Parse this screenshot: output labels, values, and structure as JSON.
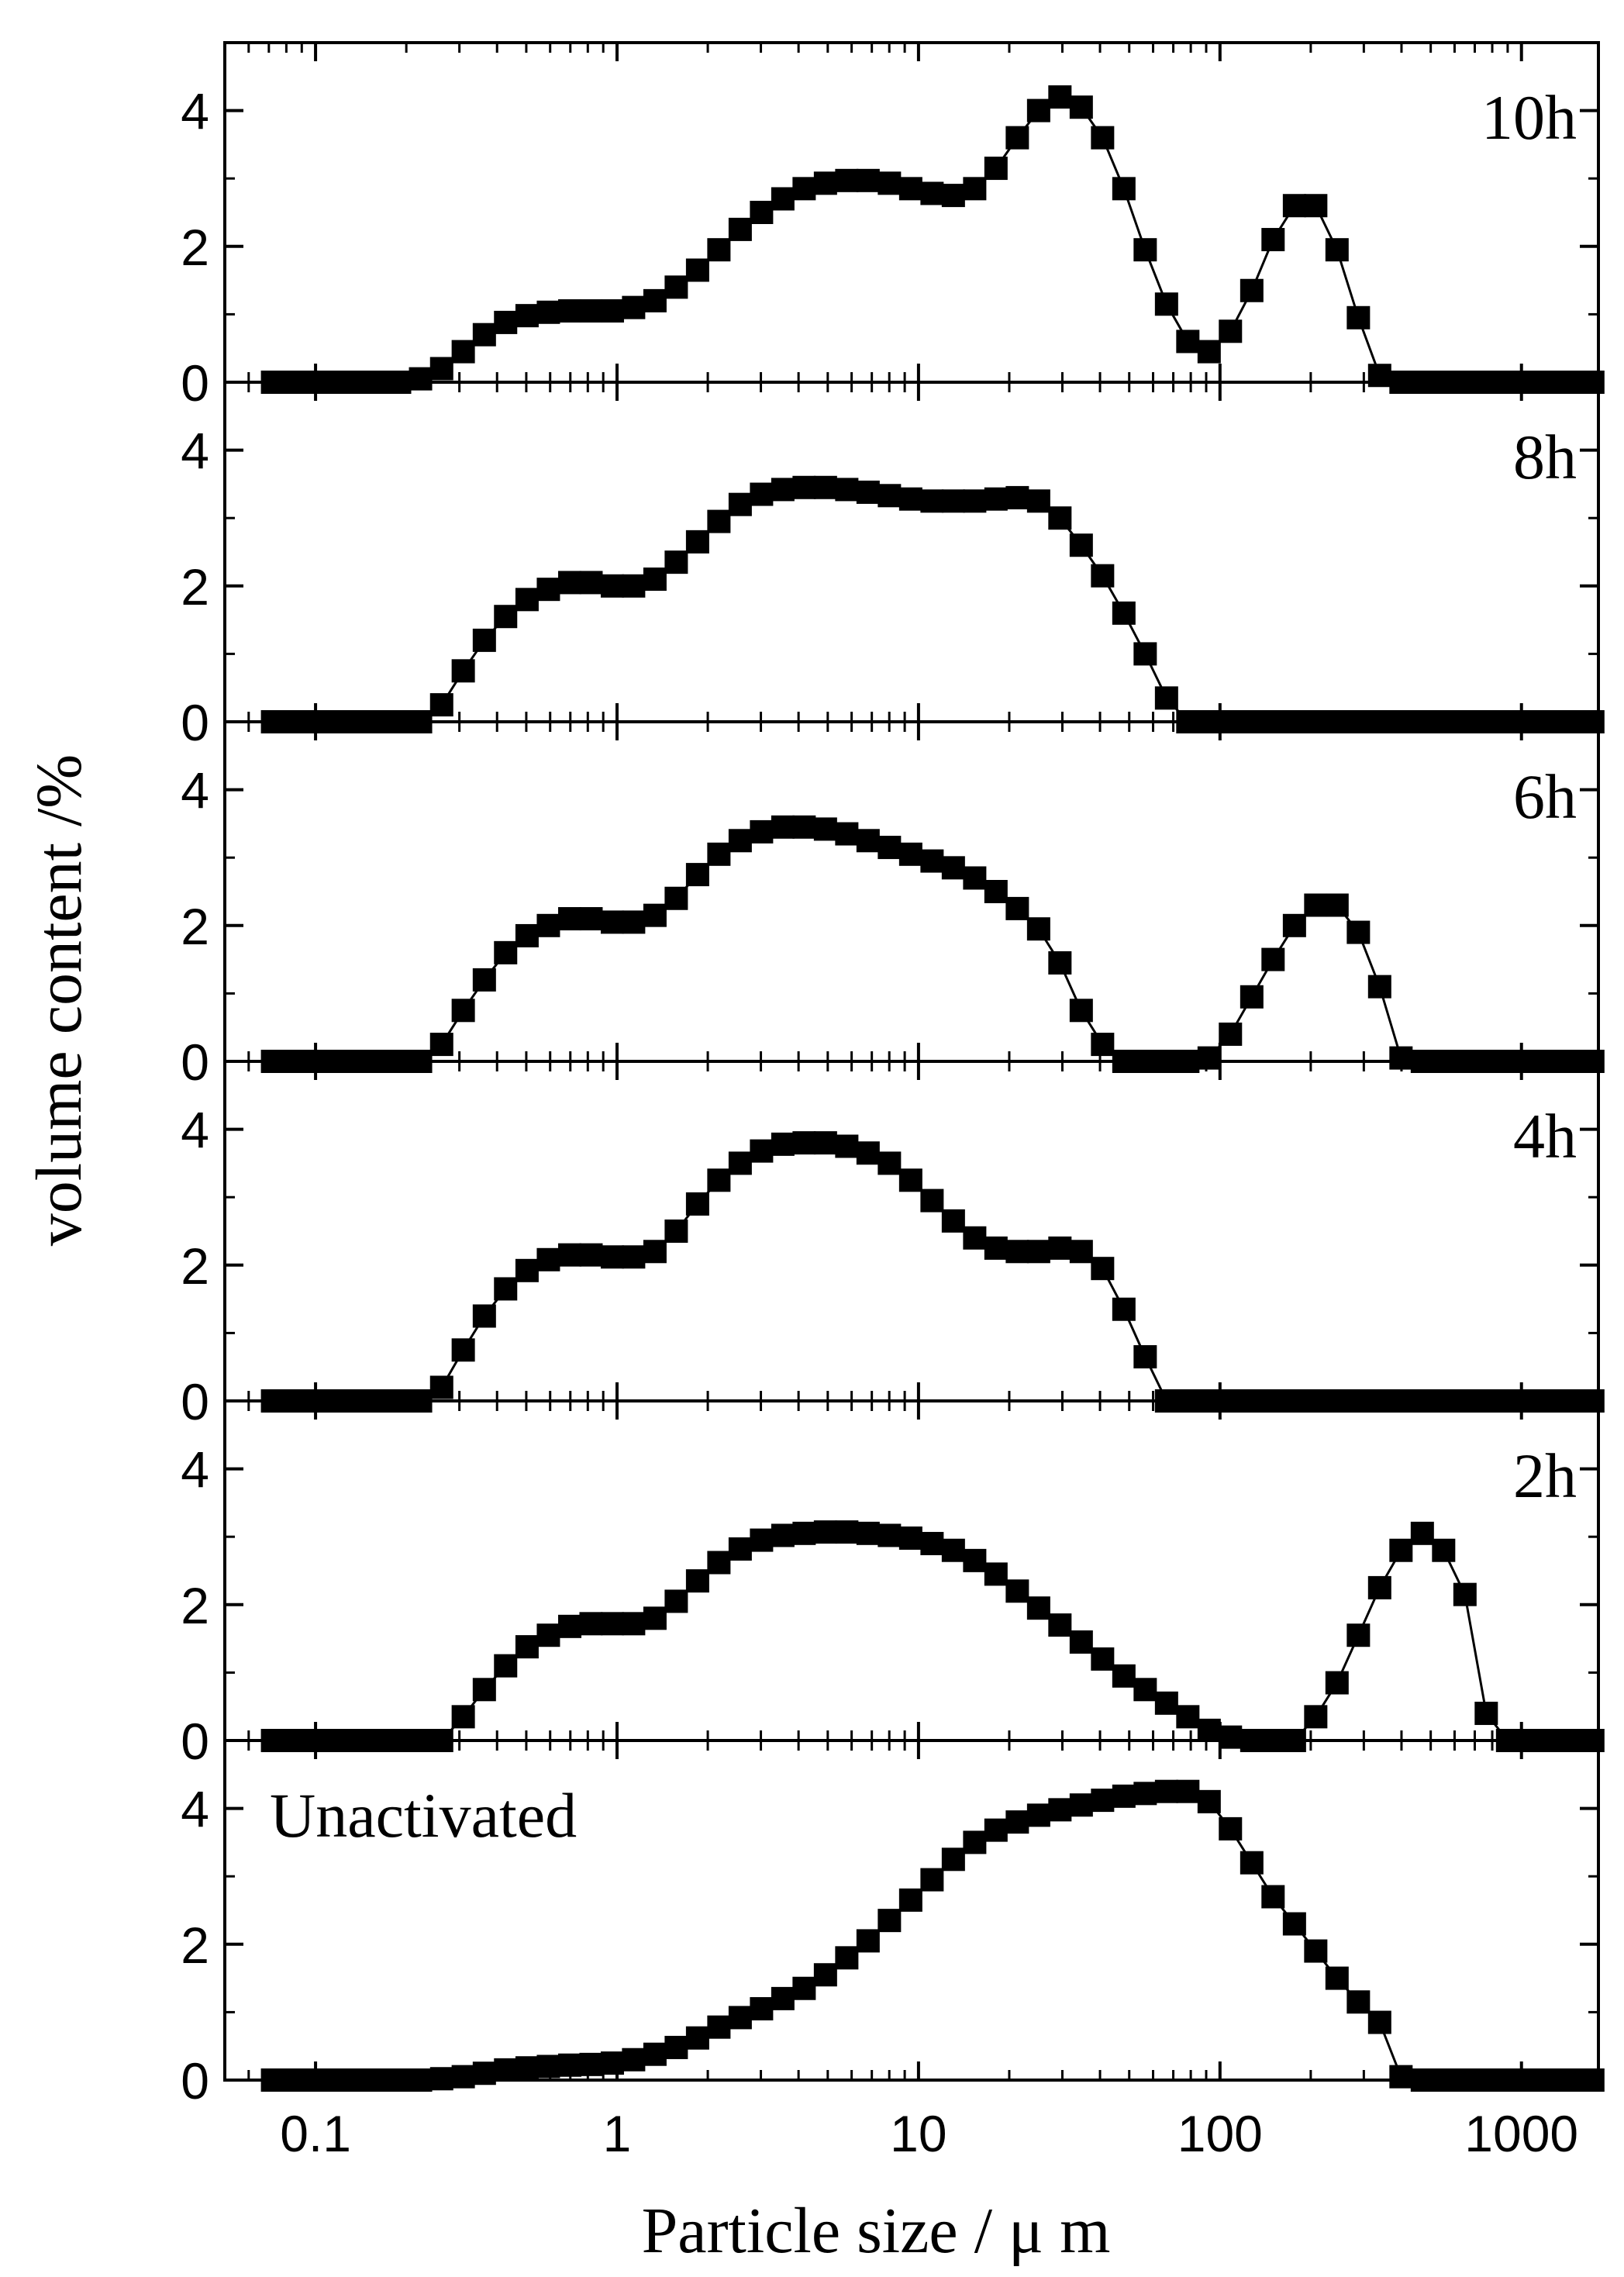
{
  "chart_data": {
    "type": "scatter",
    "title": "",
    "xlabel": "Particle size / μ m",
    "ylabel": "volume content /%",
    "xscale": "log",
    "xlim": [
      0.05,
      1800
    ],
    "x_ticks": [
      0.1,
      1,
      10,
      100,
      1000
    ],
    "x_tick_labels": [
      "0.1",
      "1",
      "10",
      "100",
      "1000"
    ],
    "y_ticks": [
      0,
      2,
      4
    ],
    "y_tick_labels": [
      "0",
      "2",
      "4"
    ],
    "legend_position": "none",
    "marker": "filled-square",
    "color": "#000000",
    "panels": [
      {
        "name": "10h",
        "label": "10h",
        "label_position": "top-right",
        "ylim": [
          0,
          5
        ],
        "x": [
          0.072,
          0.084,
          0.099,
          0.117,
          0.137,
          0.161,
          0.19,
          0.223,
          0.262,
          0.309,
          0.363,
          0.427,
          0.503,
          0.592,
          0.697,
          0.82,
          0.965,
          1.135,
          1.336,
          1.572,
          1.85,
          2.177,
          2.562,
          3.015,
          3.548,
          4.175,
          4.913,
          5.782,
          6.804,
          8.007,
          9.423,
          11.09,
          13.05,
          15.36,
          18.07,
          21.27,
          25.03,
          29.45,
          34.66,
          40.79,
          48.0,
          56.49,
          66.48,
          78.23,
          92.06,
          108.3,
          127.5,
          150.0,
          176.6,
          207.8,
          244.5,
          287.8,
          338.6,
          398.5,
          469.0,
          551.9,
          649.5,
          764.3,
          899.5,
          1058.5,
          1245.6,
          1466.0,
          1725.0
        ],
        "y": [
          0.0,
          0.0,
          0.0,
          0.0,
          0.0,
          0.0,
          0.0,
          0.05,
          0.2,
          0.45,
          0.7,
          0.88,
          0.98,
          1.03,
          1.05,
          1.05,
          1.05,
          1.1,
          1.2,
          1.4,
          1.65,
          1.95,
          2.25,
          2.5,
          2.7,
          2.85,
          2.93,
          2.97,
          2.97,
          2.93,
          2.85,
          2.78,
          2.75,
          2.85,
          3.15,
          3.6,
          4.0,
          4.2,
          4.05,
          3.6,
          2.85,
          1.95,
          1.15,
          0.6,
          0.45,
          0.75,
          1.35,
          2.1,
          2.6,
          2.6,
          1.95,
          0.95,
          0.1,
          0.0,
          0.0,
          0.0,
          0.0,
          0.0,
          0.0,
          0.0,
          0.0,
          0.0,
          0.0
        ]
      },
      {
        "name": "8h",
        "label": "8h",
        "label_position": "top-right",
        "ylim": [
          0,
          5
        ],
        "x": [
          0.072,
          0.084,
          0.099,
          0.117,
          0.137,
          0.161,
          0.19,
          0.223,
          0.262,
          0.309,
          0.363,
          0.427,
          0.503,
          0.592,
          0.697,
          0.82,
          0.965,
          1.135,
          1.336,
          1.572,
          1.85,
          2.177,
          2.562,
          3.015,
          3.548,
          4.175,
          4.913,
          5.782,
          6.804,
          8.007,
          9.423,
          11.09,
          13.05,
          15.36,
          18.07,
          21.27,
          25.03,
          29.45,
          34.66,
          40.79,
          48.0,
          56.49,
          66.48,
          78.23,
          92.06,
          108.3,
          127.5,
          150.0,
          176.6,
          207.8,
          244.5,
          287.8,
          338.6,
          398.5,
          469.0,
          551.9,
          649.5,
          764.3,
          899.5,
          1058.5,
          1245.6,
          1466.0,
          1725.0
        ],
        "y": [
          0.0,
          0.0,
          0.0,
          0.0,
          0.0,
          0.0,
          0.0,
          0.0,
          0.25,
          0.75,
          1.2,
          1.55,
          1.8,
          1.95,
          2.05,
          2.05,
          2.0,
          2.0,
          2.1,
          2.35,
          2.65,
          2.95,
          3.2,
          3.35,
          3.42,
          3.45,
          3.45,
          3.42,
          3.38,
          3.33,
          3.28,
          3.25,
          3.25,
          3.25,
          3.28,
          3.3,
          3.25,
          3.0,
          2.6,
          2.15,
          1.6,
          1.0,
          0.35,
          0.0,
          0.0,
          0.0,
          0.0,
          0.0,
          0.0,
          0.0,
          0.0,
          0.0,
          0.0,
          0.0,
          0.0,
          0.0,
          0.0,
          0.0,
          0.0,
          0.0,
          0.0,
          0.0,
          0.0
        ]
      },
      {
        "name": "6h",
        "label": "6h",
        "label_position": "top-right",
        "ylim": [
          0,
          5
        ],
        "x": [
          0.072,
          0.084,
          0.099,
          0.117,
          0.137,
          0.161,
          0.19,
          0.223,
          0.262,
          0.309,
          0.363,
          0.427,
          0.503,
          0.592,
          0.697,
          0.82,
          0.965,
          1.135,
          1.336,
          1.572,
          1.85,
          2.177,
          2.562,
          3.015,
          3.548,
          4.175,
          4.913,
          5.782,
          6.804,
          8.007,
          9.423,
          11.09,
          13.05,
          15.36,
          18.07,
          21.27,
          25.03,
          29.45,
          34.66,
          40.79,
          48.0,
          56.49,
          66.48,
          78.23,
          92.06,
          108.3,
          127.5,
          150.0,
          176.6,
          207.8,
          244.5,
          287.8,
          338.6,
          398.5,
          469.0,
          551.9,
          649.5,
          764.3,
          899.5,
          1058.5,
          1245.6,
          1466.0,
          1725.0
        ],
        "y": [
          0.0,
          0.0,
          0.0,
          0.0,
          0.0,
          0.0,
          0.0,
          0.0,
          0.25,
          0.75,
          1.2,
          1.6,
          1.85,
          2.0,
          2.1,
          2.1,
          2.05,
          2.05,
          2.15,
          2.4,
          2.75,
          3.05,
          3.25,
          3.38,
          3.45,
          3.45,
          3.42,
          3.35,
          3.25,
          3.15,
          3.05,
          2.95,
          2.85,
          2.7,
          2.5,
          2.25,
          1.95,
          1.45,
          0.75,
          0.25,
          0.0,
          0.0,
          0.0,
          0.0,
          0.05,
          0.4,
          0.95,
          1.5,
          2.0,
          2.3,
          2.3,
          1.9,
          1.1,
          0.05,
          0.0,
          0.0,
          0.0,
          0.0,
          0.0,
          0.0,
          0.0,
          0.0,
          0.0
        ]
      },
      {
        "name": "4h",
        "label": "4h",
        "label_position": "top-right",
        "ylim": [
          0,
          5
        ],
        "x": [
          0.072,
          0.084,
          0.099,
          0.117,
          0.137,
          0.161,
          0.19,
          0.223,
          0.262,
          0.309,
          0.363,
          0.427,
          0.503,
          0.592,
          0.697,
          0.82,
          0.965,
          1.135,
          1.336,
          1.572,
          1.85,
          2.177,
          2.562,
          3.015,
          3.548,
          4.175,
          4.913,
          5.782,
          6.804,
          8.007,
          9.423,
          11.09,
          13.05,
          15.36,
          18.07,
          21.27,
          25.03,
          29.45,
          34.66,
          40.79,
          48.0,
          56.49,
          66.48,
          78.23,
          92.06,
          108.3,
          127.5,
          150.0,
          176.6,
          207.8,
          244.5,
          287.8,
          338.6,
          398.5,
          469.0,
          551.9,
          649.5,
          764.3,
          899.5,
          1058.5,
          1245.6,
          1466.0,
          1725.0
        ],
        "y": [
          0.0,
          0.0,
          0.0,
          0.0,
          0.0,
          0.0,
          0.0,
          0.0,
          0.2,
          0.75,
          1.25,
          1.65,
          1.92,
          2.08,
          2.15,
          2.15,
          2.12,
          2.12,
          2.2,
          2.5,
          2.9,
          3.25,
          3.5,
          3.68,
          3.78,
          3.8,
          3.8,
          3.75,
          3.65,
          3.5,
          3.25,
          2.95,
          2.65,
          2.4,
          2.25,
          2.2,
          2.2,
          2.25,
          2.2,
          1.95,
          1.35,
          0.65,
          0.0,
          0.0,
          0.0,
          0.0,
          0.0,
          0.0,
          0.0,
          0.0,
          0.0,
          0.0,
          0.0,
          0.0,
          0.0,
          0.0,
          0.0,
          0.0,
          0.0,
          0.0,
          0.0,
          0.0,
          0.0
        ]
      },
      {
        "name": "2h",
        "label": "2h",
        "label_position": "top-right",
        "ylim": [
          0,
          5
        ],
        "x": [
          0.072,
          0.084,
          0.099,
          0.117,
          0.137,
          0.161,
          0.19,
          0.223,
          0.262,
          0.309,
          0.363,
          0.427,
          0.503,
          0.592,
          0.697,
          0.82,
          0.965,
          1.135,
          1.336,
          1.572,
          1.85,
          2.177,
          2.562,
          3.015,
          3.548,
          4.175,
          4.913,
          5.782,
          6.804,
          8.007,
          9.423,
          11.09,
          13.05,
          15.36,
          18.07,
          21.27,
          25.03,
          29.45,
          34.66,
          40.79,
          48.0,
          56.49,
          66.48,
          78.23,
          92.06,
          108.3,
          127.5,
          150.0,
          176.6,
          207.8,
          244.5,
          287.8,
          338.6,
          398.5,
          469.0,
          551.9,
          649.5,
          764.3,
          899.5,
          1058.5,
          1245.6,
          1466.0,
          1725.0
        ],
        "y": [
          0.0,
          0.0,
          0.0,
          0.0,
          0.0,
          0.0,
          0.0,
          0.0,
          0.0,
          0.35,
          0.75,
          1.1,
          1.38,
          1.55,
          1.68,
          1.72,
          1.72,
          1.72,
          1.8,
          2.05,
          2.35,
          2.62,
          2.82,
          2.95,
          3.02,
          3.05,
          3.07,
          3.07,
          3.05,
          3.02,
          2.98,
          2.9,
          2.8,
          2.65,
          2.45,
          2.2,
          1.95,
          1.7,
          1.45,
          1.2,
          0.95,
          0.75,
          0.55,
          0.35,
          0.15,
          0.05,
          0.0,
          0.0,
          0.0,
          0.35,
          0.85,
          1.55,
          2.25,
          2.8,
          3.05,
          2.8,
          2.15,
          0.4,
          0.0,
          0.0,
          0.0,
          0.0,
          0.0
        ]
      },
      {
        "name": "Unactivated",
        "label": "Unactivated",
        "label_position": "top-left",
        "ylim": [
          0,
          5
        ],
        "x": [
          0.072,
          0.084,
          0.099,
          0.117,
          0.137,
          0.161,
          0.19,
          0.223,
          0.262,
          0.309,
          0.363,
          0.427,
          0.503,
          0.592,
          0.697,
          0.82,
          0.965,
          1.135,
          1.336,
          1.572,
          1.85,
          2.177,
          2.562,
          3.015,
          3.548,
          4.175,
          4.913,
          5.782,
          6.804,
          8.007,
          9.423,
          11.09,
          13.05,
          15.36,
          18.07,
          21.27,
          25.03,
          29.45,
          34.66,
          40.79,
          48.0,
          56.49,
          66.48,
          78.23,
          92.06,
          108.3,
          127.5,
          150.0,
          176.6,
          207.8,
          244.5,
          287.8,
          338.6,
          398.5,
          469.0,
          551.9,
          649.5,
          764.3,
          899.5,
          1058.5,
          1245.6,
          1466.0,
          1725.0
        ],
        "y": [
          0.0,
          0.0,
          0.0,
          0.0,
          0.0,
          0.0,
          0.0,
          0.0,
          0.02,
          0.05,
          0.1,
          0.15,
          0.18,
          0.2,
          0.22,
          0.23,
          0.25,
          0.3,
          0.38,
          0.48,
          0.62,
          0.78,
          0.92,
          1.05,
          1.2,
          1.35,
          1.55,
          1.8,
          2.05,
          2.35,
          2.65,
          2.95,
          3.25,
          3.5,
          3.68,
          3.8,
          3.9,
          3.98,
          4.05,
          4.12,
          4.18,
          4.22,
          4.25,
          4.25,
          4.1,
          3.7,
          3.2,
          2.7,
          2.3,
          1.9,
          1.5,
          1.15,
          0.85,
          0.05,
          0.0,
          0.0,
          0.0,
          0.0,
          0.0,
          0.0,
          0.0,
          0.0,
          0.0
        ]
      }
    ]
  }
}
